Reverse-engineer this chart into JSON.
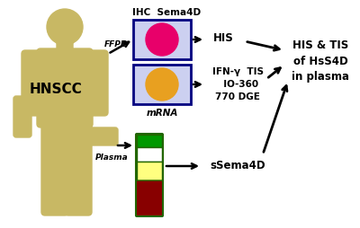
{
  "figure_bg": "#ffffff",
  "human_color": "#c8b864",
  "hnscc_text": "HNSCC",
  "ffpe_text": "FFPE",
  "plasma_text": "Plasma",
  "ihc_text": "IHC  Sema4D",
  "his_text": "HIS",
  "mrna_text": "mRNA",
  "ifn_text": "IFN-γ  TIS\n  IO-360\n770 DGE",
  "ssema4d_text": "sSema4D",
  "final_text": "HIS & TIS\nof HsS4D\nin plasma",
  "dot1_color": "#e8006a",
  "dot2_color": "#e8a020",
  "box1_bg": "#ccd0f0",
  "box2_bg": "#ccd0f0",
  "tube_green": "#009900",
  "tube_white": "#ffffff",
  "tube_yellow": "#ffff80",
  "tube_red": "#880000",
  "tube_outline": "#226600"
}
